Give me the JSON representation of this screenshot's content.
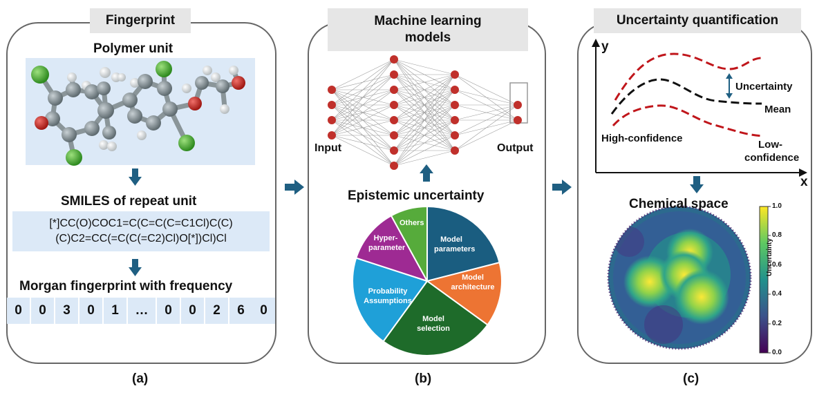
{
  "panel_a": {
    "header": "Fingerprint",
    "polymer_title": "Polymer unit",
    "smiles_title": "SMILES of repeat unit",
    "smiles_line1": "[*]CC(O)COC1=C(C=C(C=C1Cl)C(C)",
    "smiles_line2": "(C)C2=CC(=C(C(=C2)Cl)O[*])Cl)Cl",
    "morgan_title": "Morgan fingerprint with frequency",
    "fingerprint": [
      "0",
      "0",
      "3",
      "0",
      "1",
      "…",
      "0",
      "0",
      "2",
      "6",
      "0"
    ],
    "caption": "(a)"
  },
  "panel_b": {
    "header": "Machine learning models",
    "input_label": "Input",
    "output_label": "Output",
    "pie_title": "Epistemic uncertainty",
    "pie_slices": [
      {
        "label": "Model parameters",
        "value": 21,
        "color": "#1a5d80"
      },
      {
        "label": "Model architecture",
        "value": 14,
        "color": "#ed7433"
      },
      {
        "label": "Model selection",
        "value": 25,
        "color": "#1e6b2a"
      },
      {
        "label": "Probability Assumptions",
        "value": 20,
        "color": "#1fa0d8"
      },
      {
        "label": "Hyper-parameter",
        "value": 12,
        "color": "#9e2a93"
      },
      {
        "label": "Others",
        "value": 8,
        "color": "#56ab3b"
      }
    ],
    "caption": "(b)"
  },
  "panel_c": {
    "header": "Uncertainty quantification",
    "y_axis": "y",
    "x_axis": "x",
    "uncertainty_label": "Uncertainty",
    "mean_label": "Mean",
    "high_conf_label": "High-confidence",
    "low_conf_label": "Low-confidence",
    "chem_title": "Chemical space",
    "colorbar_label": "Uncertainty",
    "colorbar_ticks": [
      "1.0",
      "0.8",
      "0.6",
      "0.4",
      "0.2",
      "0.0"
    ],
    "caption": "(c)"
  },
  "colors": {
    "arrow": "#1f5f82",
    "node": "#c0302b",
    "curve_red": "#c0161b"
  }
}
